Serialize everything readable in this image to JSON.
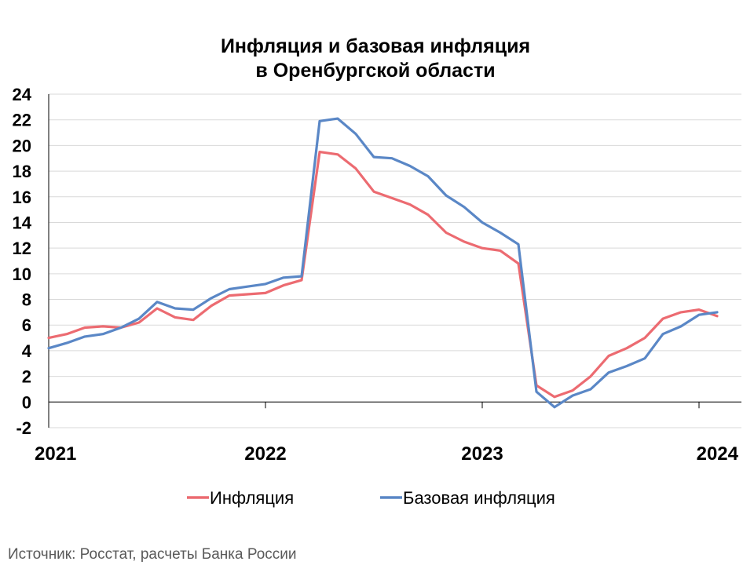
{
  "chart_data": {
    "type": "line",
    "title": [
      "Инфляция и базовая инфляция",
      "в Оренбургской области"
    ],
    "source": "Источник: Росстат, расчеты Банка России",
    "ylim": [
      -2,
      24
    ],
    "y_ticks": [
      -2,
      0,
      2,
      4,
      6,
      8,
      10,
      12,
      14,
      16,
      18,
      20,
      22,
      24
    ],
    "y_tick_labels": [
      "-2",
      "0",
      "2",
      "4",
      "6",
      "8",
      "10",
      "12",
      "14",
      "16",
      "18",
      "20",
      "22",
      "24"
    ],
    "x_tick_labels": [
      "2021",
      "2022",
      "2023",
      "2024"
    ],
    "x": [
      "2021-01",
      "2021-02",
      "2021-03",
      "2021-04",
      "2021-05",
      "2021-06",
      "2021-07",
      "2021-08",
      "2021-09",
      "2021-10",
      "2021-11",
      "2021-12",
      "2022-01",
      "2022-02",
      "2022-03",
      "2022-04",
      "2022-05",
      "2022-06",
      "2022-07",
      "2022-08",
      "2022-09",
      "2022-10",
      "2022-11",
      "2022-12",
      "2023-01",
      "2023-02",
      "2023-03",
      "2023-04",
      "2023-05",
      "2023-06",
      "2023-07",
      "2023-08",
      "2023-09",
      "2023-10",
      "2023-11",
      "2023-12",
      "2024-01",
      "2024-02"
    ],
    "grid": true,
    "legend_position": "bottom",
    "series": [
      {
        "name": "Инфляция",
        "color": "#ec6b71",
        "values": [
          5.0,
          5.3,
          5.8,
          5.9,
          5.8,
          6.2,
          7.3,
          6.6,
          6.4,
          7.5,
          8.3,
          8.4,
          8.5,
          9.1,
          9.5,
          19.5,
          19.3,
          18.2,
          16.4,
          15.9,
          15.4,
          14.6,
          13.2,
          12.5,
          12.0,
          11.8,
          10.8,
          1.3,
          0.4,
          0.9,
          2.0,
          3.6,
          4.2,
          5.0,
          6.5,
          7.0,
          7.2,
          6.7
        ]
      },
      {
        "name": "Базовая инфляция",
        "color": "#5a87c6",
        "values": [
          4.2,
          4.6,
          5.1,
          5.3,
          5.8,
          6.5,
          7.8,
          7.3,
          7.2,
          8.1,
          8.8,
          9.0,
          9.2,
          9.7,
          9.8,
          21.9,
          22.1,
          20.9,
          19.1,
          19.0,
          18.4,
          17.6,
          16.1,
          15.2,
          14.0,
          13.2,
          12.3,
          0.8,
          -0.4,
          0.5,
          1.0,
          2.3,
          2.8,
          3.4,
          5.3,
          5.9,
          6.8,
          7.0
        ]
      }
    ]
  }
}
